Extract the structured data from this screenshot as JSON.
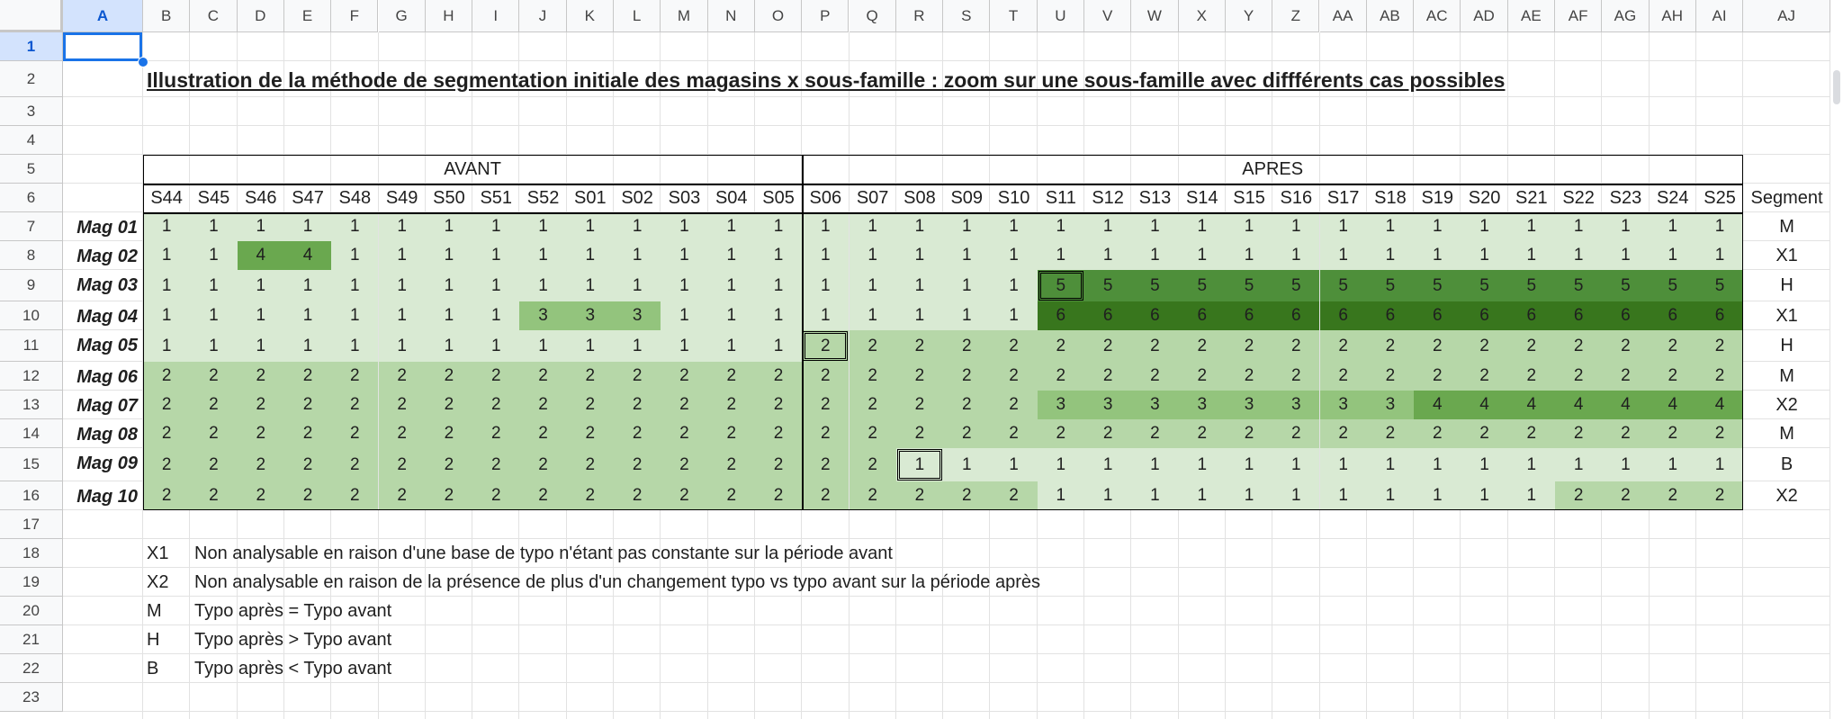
{
  "columns": [
    "A",
    "B",
    "C",
    "D",
    "E",
    "F",
    "G",
    "H",
    "I",
    "J",
    "K",
    "L",
    "M",
    "N",
    "O",
    "P",
    "Q",
    "R",
    "S",
    "T",
    "U",
    "V",
    "W",
    "X",
    "Y",
    "Z",
    "AA",
    "AB",
    "AC",
    "AD",
    "AE",
    "AF",
    "AG",
    "AH",
    "AI",
    "AJ"
  ],
  "rows": [
    "1",
    "2",
    "3",
    "4",
    "5",
    "6",
    "7",
    "8",
    "9",
    "10",
    "11",
    "12",
    "13",
    "14",
    "15",
    "16",
    "17",
    "18",
    "19",
    "20",
    "21",
    "22",
    "23"
  ],
  "selected_cell": "A1",
  "title": "Illustration de la méthode de segmentation initiale des magasins x sous-famille : zoom sur une sous-famille avec diffférents cas possibles",
  "group_avant": "AVANT",
  "group_apres": "APRES",
  "segment_header": "Segment",
  "weeks": [
    "S44",
    "S45",
    "S46",
    "S47",
    "S48",
    "S49",
    "S50",
    "S51",
    "S52",
    "S01",
    "S02",
    "S03",
    "S04",
    "S05",
    "S06",
    "S07",
    "S08",
    "S09",
    "S10",
    "S11",
    "S12",
    "S13",
    "S14",
    "S15",
    "S16",
    "S17",
    "S18",
    "S19",
    "S20",
    "S21",
    "S22",
    "S23",
    "S24",
    "S25"
  ],
  "stores": [
    {
      "name": "Mag 01",
      "segment": "M",
      "values": [
        1,
        1,
        1,
        1,
        1,
        1,
        1,
        1,
        1,
        1,
        1,
        1,
        1,
        1,
        1,
        1,
        1,
        1,
        1,
        1,
        1,
        1,
        1,
        1,
        1,
        1,
        1,
        1,
        1,
        1,
        1,
        1,
        1,
        1
      ]
    },
    {
      "name": "Mag 02",
      "segment": "X1",
      "values": [
        1,
        1,
        4,
        4,
        1,
        1,
        1,
        1,
        1,
        1,
        1,
        1,
        1,
        1,
        1,
        1,
        1,
        1,
        1,
        1,
        1,
        1,
        1,
        1,
        1,
        1,
        1,
        1,
        1,
        1,
        1,
        1,
        1,
        1
      ]
    },
    {
      "name": "Mag 03",
      "segment": "H",
      "values": [
        1,
        1,
        1,
        1,
        1,
        1,
        1,
        1,
        1,
        1,
        1,
        1,
        1,
        1,
        1,
        1,
        1,
        1,
        1,
        5,
        5,
        5,
        5,
        5,
        5,
        5,
        5,
        5,
        5,
        5,
        5,
        5,
        5,
        5
      ]
    },
    {
      "name": "Mag 04",
      "segment": "X1",
      "values": [
        1,
        1,
        1,
        1,
        1,
        1,
        1,
        1,
        3,
        3,
        3,
        1,
        1,
        1,
        1,
        1,
        1,
        1,
        1,
        6,
        6,
        6,
        6,
        6,
        6,
        6,
        6,
        6,
        6,
        6,
        6,
        6,
        6,
        6
      ]
    },
    {
      "name": "Mag 05",
      "segment": "H",
      "values": [
        1,
        1,
        1,
        1,
        1,
        1,
        1,
        1,
        1,
        1,
        1,
        1,
        1,
        1,
        2,
        2,
        2,
        2,
        2,
        2,
        2,
        2,
        2,
        2,
        2,
        2,
        2,
        2,
        2,
        2,
        2,
        2,
        2,
        2
      ]
    },
    {
      "name": "Mag 06",
      "segment": "M",
      "values": [
        2,
        2,
        2,
        2,
        2,
        2,
        2,
        2,
        2,
        2,
        2,
        2,
        2,
        2,
        2,
        2,
        2,
        2,
        2,
        2,
        2,
        2,
        2,
        2,
        2,
        2,
        2,
        2,
        2,
        2,
        2,
        2,
        2,
        2
      ]
    },
    {
      "name": "Mag 07",
      "segment": "X2",
      "values": [
        2,
        2,
        2,
        2,
        2,
        2,
        2,
        2,
        2,
        2,
        2,
        2,
        2,
        2,
        2,
        2,
        2,
        2,
        2,
        3,
        3,
        3,
        3,
        3,
        3,
        3,
        3,
        4,
        4,
        4,
        4,
        4,
        4,
        4
      ]
    },
    {
      "name": "Mag 08",
      "segment": "M",
      "values": [
        2,
        2,
        2,
        2,
        2,
        2,
        2,
        2,
        2,
        2,
        2,
        2,
        2,
        2,
        2,
        2,
        2,
        2,
        2,
        2,
        2,
        2,
        2,
        2,
        2,
        2,
        2,
        2,
        2,
        2,
        2,
        2,
        2,
        2
      ]
    },
    {
      "name": "Mag 09",
      "segment": "B",
      "values": [
        2,
        2,
        2,
        2,
        2,
        2,
        2,
        2,
        2,
        2,
        2,
        2,
        2,
        2,
        2,
        2,
        1,
        1,
        1,
        1,
        1,
        1,
        1,
        1,
        1,
        1,
        1,
        1,
        1,
        1,
        1,
        1,
        1,
        1
      ]
    },
    {
      "name": "Mag 10",
      "segment": "X2",
      "values": [
        2,
        2,
        2,
        2,
        2,
        2,
        2,
        2,
        2,
        2,
        2,
        2,
        2,
        2,
        2,
        2,
        2,
        2,
        2,
        1,
        1,
        1,
        1,
        1,
        1,
        1,
        1,
        1,
        1,
        1,
        2,
        2,
        2,
        2
      ]
    }
  ],
  "legend": [
    {
      "code": "X1",
      "desc": "Non analysable en raison d'une base de typo n'étant pas constante sur la période avant"
    },
    {
      "code": "X2",
      "desc": "Non analysable en raison de la présence de plus d'un changement typo vs typo avant sur la période après"
    },
    {
      "code": "M",
      "desc": "Typo après = Typo avant"
    },
    {
      "code": "H",
      "desc": "Typo après > Typo avant"
    },
    {
      "code": "B",
      "desc": "Typo après < Typo avant"
    }
  ],
  "colors": {
    "1": "#d9ead3",
    "2": "#b6d7a8",
    "3": "#93c47d",
    "4": "#6aa84f",
    "5": "#4e8f3a",
    "6": "#38761d",
    "selection": "#1a73e8",
    "header_bg": "#f8f9fa"
  }
}
